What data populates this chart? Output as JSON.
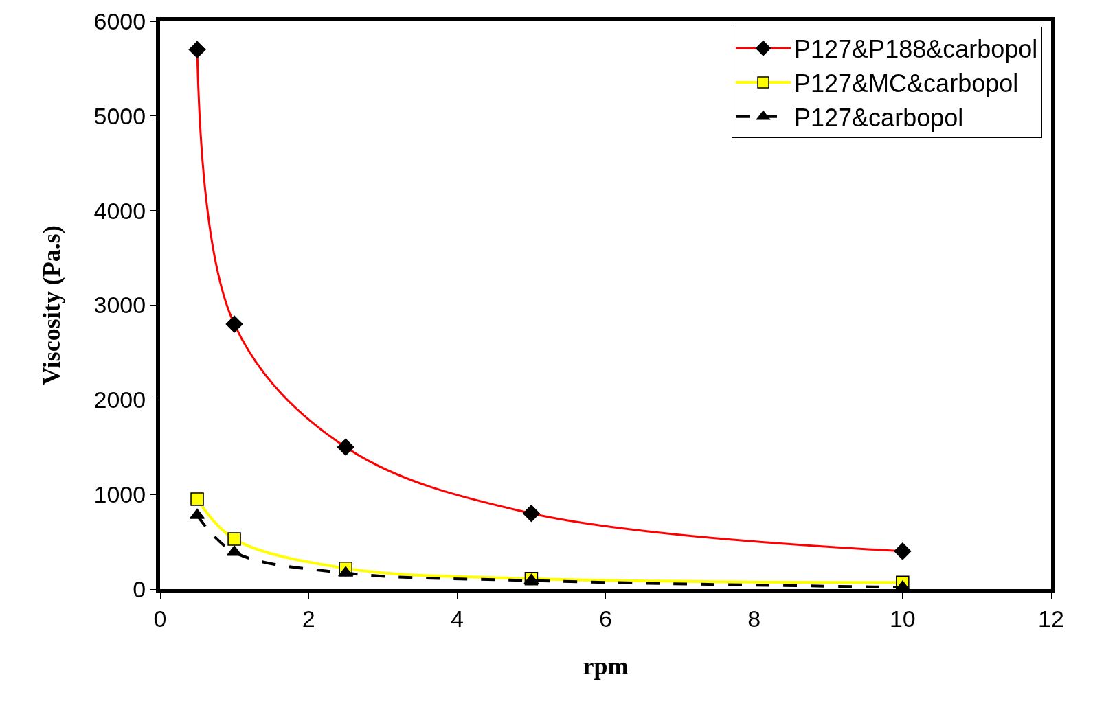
{
  "chart_data": {
    "type": "line",
    "xlabel": "rpm",
    "ylabel": "Viscosity (Pa.s)",
    "xlim": [
      0,
      12
    ],
    "xticks": [
      0,
      2,
      4,
      6,
      8,
      10,
      12
    ],
    "ylim": [
      0,
      6000
    ],
    "yticks": [
      0,
      1000,
      2000,
      3000,
      4000,
      5000,
      6000
    ],
    "x": [
      0.5,
      1,
      2.5,
      5,
      10
    ],
    "legend": "top right",
    "series": [
      {
        "name": "P127&P188&carbopol",
        "color": "#ff0000",
        "colors": [
          "#000000",
          "#000000",
          "#000000",
          "#000000",
          "#000000"
        ],
        "marker": "diamond",
        "line_style": "solid",
        "values": [
          5700,
          2800,
          1500,
          800,
          400
        ]
      },
      {
        "name": "P127&MC&carbopol",
        "color": "#ffff00",
        "colors": [
          "#ffff00",
          "#ffff00",
          "#ffff00",
          "#ffff00",
          "#ffff00"
        ],
        "marker": "square",
        "line_style": "solid",
        "values": [
          950,
          530,
          220,
          110,
          70
        ]
      },
      {
        "name": "P127&carbopol",
        "color": "#000000",
        "colors": [
          "#000000",
          "#000000",
          "#000000",
          "#000000",
          "#000000"
        ],
        "marker": "triangle",
        "line_style": "dashed",
        "values": [
          780,
          390,
          170,
          90,
          20
        ]
      }
    ]
  }
}
